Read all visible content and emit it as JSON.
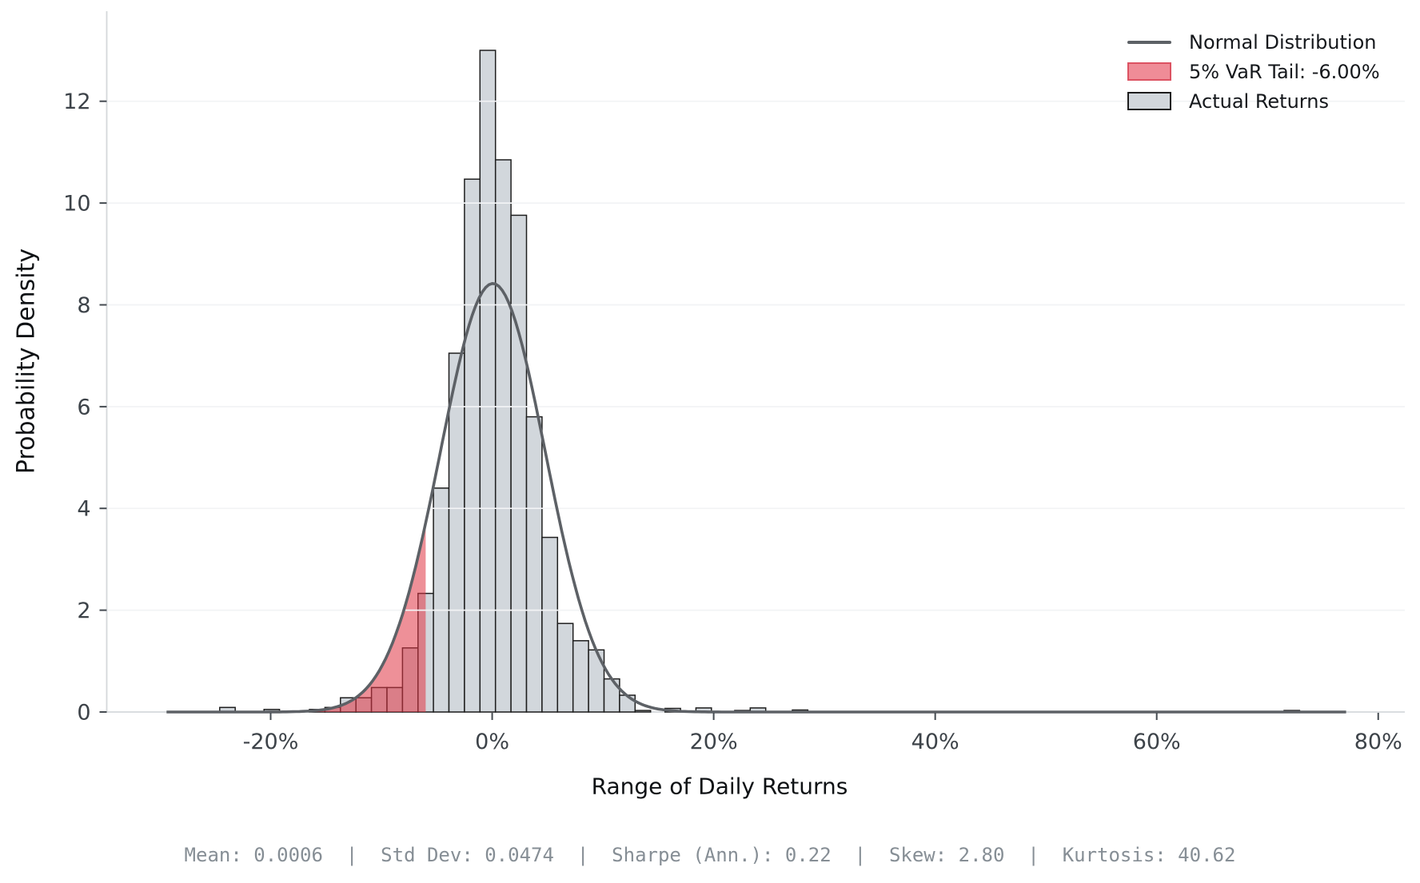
{
  "figure": {
    "xlabel": "Range of Daily Returns",
    "ylabel": "Probability Density",
    "stats_line": "Mean: 0.0006  |  Std Dev: 0.0474  |  Sharpe (Ann.): 0.22  |  Skew: 2.80  |  Kurtosis: 40.62"
  },
  "legend": {
    "items": [
      {
        "swatch": "line",
        "label": "Normal Distribution"
      },
      {
        "swatch": "var-patch",
        "label": "5% VaR Tail: -6.00%"
      },
      {
        "swatch": "hist-patch",
        "label": "Actual Returns"
      }
    ]
  },
  "chart_data": {
    "type": "bar",
    "subtype": "histogram-with-normal-overlay",
    "title": "",
    "xlabel": "Range of Daily Returns",
    "ylabel": "Probability Density",
    "x_unit": "percent_daily_return",
    "xlim": [
      -34.8,
      82.4
    ],
    "ylim": [
      0,
      13.77
    ],
    "x_ticks": [
      -20,
      0,
      20,
      40,
      60,
      80
    ],
    "x_tick_labels": [
      "-20%",
      "0%",
      "20%",
      "40%",
      "60%",
      "80%"
    ],
    "y_ticks": [
      0,
      2,
      4,
      6,
      8,
      10,
      12
    ],
    "grid": "horizontal",
    "legend_position": "upper-right",
    "bin_width": 1.4,
    "bars": [
      [
        -24.6,
        0.09
      ],
      [
        -20.6,
        0.05
      ],
      [
        -16.5,
        0.05
      ],
      [
        -15.1,
        0.09
      ],
      [
        -13.7,
        0.28
      ],
      [
        -12.3,
        0.28
      ],
      [
        -10.9,
        0.48
      ],
      [
        -9.5,
        0.48
      ],
      [
        -8.1,
        1.26
      ],
      [
        -6.7,
        2.33
      ],
      [
        -5.3,
        4.4
      ],
      [
        -3.9,
        7.05
      ],
      [
        -2.5,
        10.47
      ],
      [
        -1.1,
        13.0
      ],
      [
        0.3,
        10.85
      ],
      [
        1.7,
        9.76
      ],
      [
        3.1,
        5.8
      ],
      [
        4.5,
        3.43
      ],
      [
        5.9,
        1.74
      ],
      [
        7.3,
        1.4
      ],
      [
        8.7,
        1.22
      ],
      [
        10.1,
        0.65
      ],
      [
        11.5,
        0.33
      ],
      [
        12.9,
        0.03
      ],
      [
        15.6,
        0.07
      ],
      [
        18.4,
        0.08
      ],
      [
        21.9,
        0.03
      ],
      [
        23.3,
        0.08
      ],
      [
        27.1,
        0.04
      ],
      [
        71.5,
        0.03
      ]
    ],
    "normal_curve": {
      "mean": 0.06,
      "std": 4.74,
      "peak_density": 8.42,
      "x_range": [
        -29.4,
        77.1
      ]
    },
    "var_threshold": -6.0,
    "var_confidence": "5%",
    "stats": {
      "mean": "0.0006",
      "std_dev": "0.0474",
      "sharpe_ann": "0.22",
      "skew": "2.80",
      "kurtosis": "40.62"
    },
    "colors": {
      "bar_fill": "#d2d7dc",
      "bar_edge": "#1e1e1e",
      "curve": "#5d6166",
      "var_fill": "rgba(224,52,68,0.55)",
      "grid": "#f2f3f5",
      "spine": "#d5d8db",
      "tick": "#454b51",
      "tick_label": "#3d4349"
    }
  }
}
